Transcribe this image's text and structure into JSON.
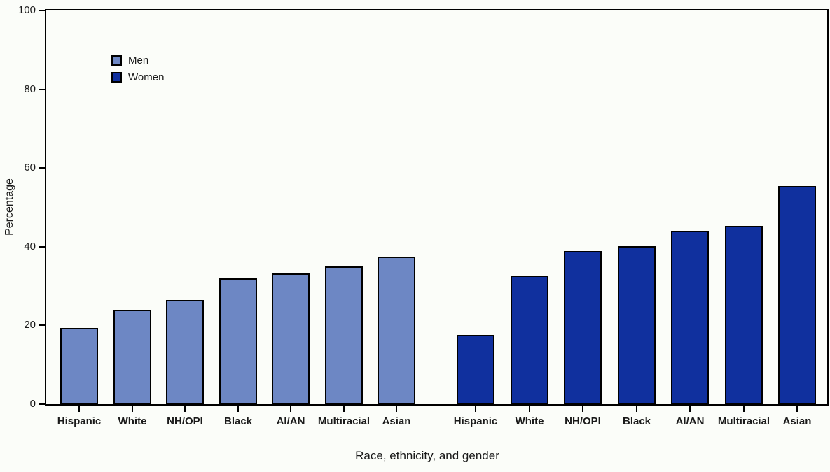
{
  "chart_data": {
    "type": "bar",
    "title": "",
    "xlabel": "Race, ethnicity, and gender",
    "ylabel": "Percentage",
    "ylim": [
      0,
      100
    ],
    "yticks": [
      0,
      20,
      40,
      60,
      80,
      100
    ],
    "grid": false,
    "legend_position": "inside-top-left",
    "bar_outline_color": "#000000",
    "categories": [
      "Hispanic",
      "White",
      "NH/OPI",
      "Black",
      "AI/AN",
      "Multiracial",
      "Asian"
    ],
    "series": [
      {
        "name": "Men",
        "color": "#6d87c4",
        "values": [
          19.4,
          24.0,
          26.5,
          31.9,
          33.2,
          35.0,
          37.4
        ]
      },
      {
        "name": "Women",
        "color": "#10309e",
        "values": [
          17.5,
          32.6,
          38.9,
          40.2,
          44.0,
          45.3,
          55.5
        ]
      }
    ]
  }
}
